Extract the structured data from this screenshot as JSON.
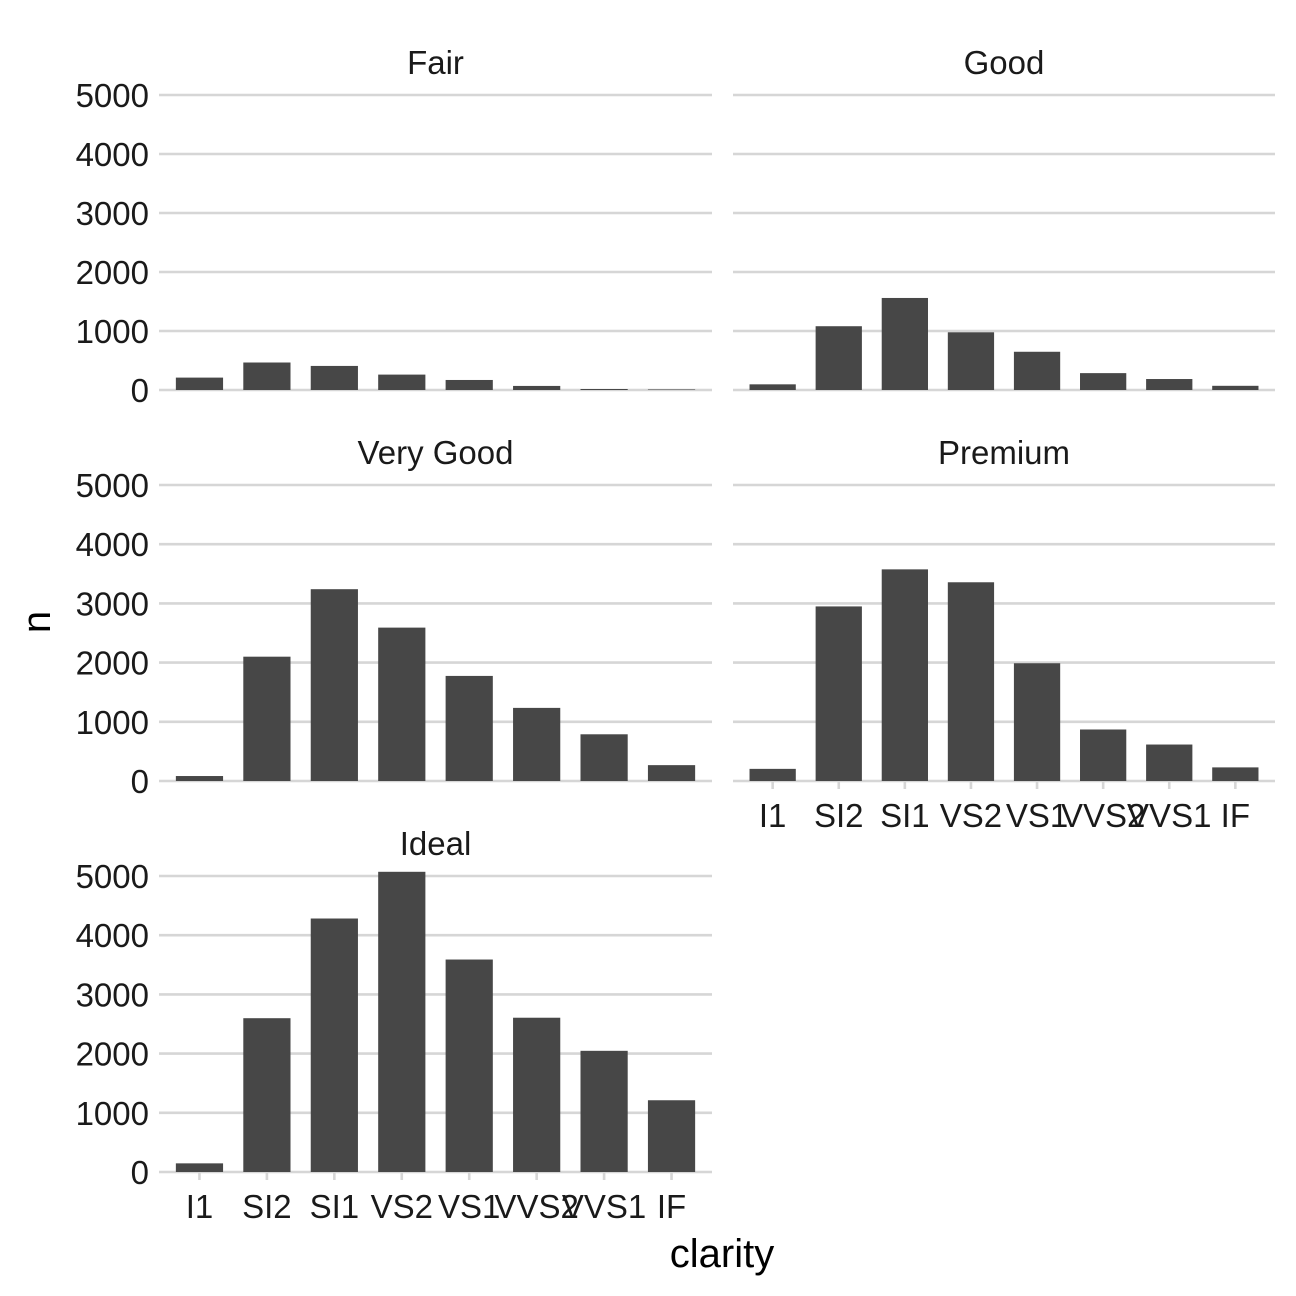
{
  "chart_data": {
    "type": "bar",
    "facet_by": "cut",
    "xlabel": "clarity",
    "ylabel": "n",
    "ylim": [
      0,
      5000
    ],
    "yticks": [
      0,
      1000,
      2000,
      3000,
      4000,
      5000
    ],
    "grid": "horizontal major",
    "categories": [
      "I1",
      "SI2",
      "SI1",
      "VS2",
      "VS1",
      "VVS2",
      "VVS1",
      "IF"
    ],
    "bar_color": "#474747",
    "grid_color": "#d6d6d6",
    "panels": [
      {
        "name": "Fair",
        "values": [
          210,
          466,
          408,
          261,
          170,
          69,
          17,
          9
        ]
      },
      {
        "name": "Good",
        "values": [
          96,
          1081,
          1560,
          978,
          648,
          286,
          186,
          71
        ]
      },
      {
        "name": "Very Good",
        "values": [
          84,
          2100,
          3240,
          2591,
          1775,
          1235,
          789,
          268
        ]
      },
      {
        "name": "Premium",
        "values": [
          205,
          2949,
          3575,
          3357,
          1989,
          870,
          616,
          230
        ]
      },
      {
        "name": "Ideal",
        "values": [
          146,
          2598,
          4282,
          5071,
          3589,
          2606,
          2047,
          1212
        ]
      }
    ]
  }
}
